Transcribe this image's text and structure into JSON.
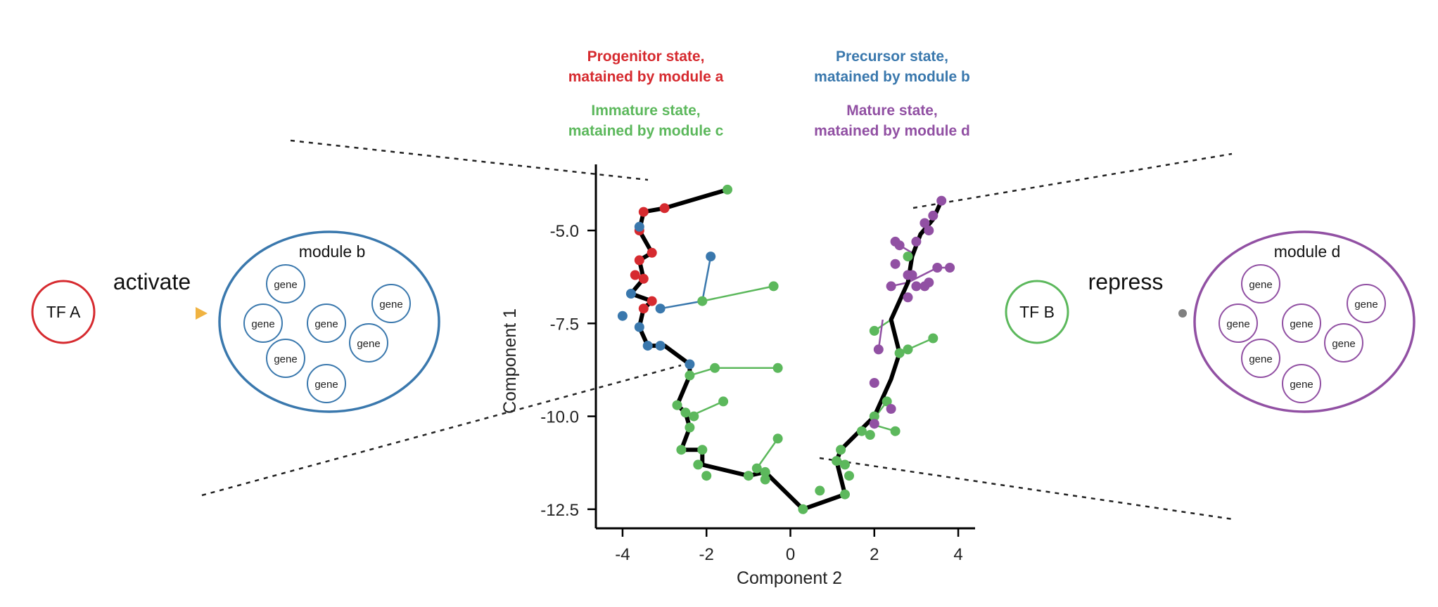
{
  "colors": {
    "progenitor": "#d62a2f",
    "precursor": "#3a78ad",
    "immature": "#5cb85c",
    "mature": "#9150a3",
    "activate_arrow": "#f0b341",
    "repress_arrow": "#808080",
    "trajectory": "#000000"
  },
  "legend": {
    "progenitor": [
      "Progenitor state,",
      "matained by module a"
    ],
    "precursor": [
      "Precursor state,",
      "matained by module b"
    ],
    "immature": [
      "Immature state,",
      "matained by module c"
    ],
    "mature": [
      "Mature state,",
      "matained by module d"
    ]
  },
  "left_panel": {
    "tf_label": "TF A",
    "arrow_label": "activate",
    "module_title": "module b",
    "gene_label": "gene",
    "gene_count": 7
  },
  "right_panel": {
    "tf_label": "TF B",
    "arrow_label": "repress",
    "module_title": "module d",
    "gene_label": "gene",
    "gene_count": 7
  },
  "chart_data": {
    "type": "scatter",
    "xlabel": "Component 2",
    "ylabel": "Component 1",
    "xlim": [
      -4.2,
      4.2
    ],
    "ylim": [
      -12.9,
      -3.6
    ],
    "xticks": [
      -4,
      -2,
      0,
      2,
      4
    ],
    "yticks": [
      -5.0,
      -7.5,
      -10.0,
      -12.5
    ],
    "xtick_labels": [
      "-4",
      "-2",
      "0",
      "2",
      "4"
    ],
    "ytick_labels": [
      "-5.0",
      "-7.5",
      "-10.0",
      "-12.5"
    ],
    "trajectory": [
      [
        -1.5,
        -3.9
      ],
      [
        -3.0,
        -4.4
      ],
      [
        -3.5,
        -4.5
      ],
      [
        -3.6,
        -5.0
      ],
      [
        -3.3,
        -5.6
      ],
      [
        -3.6,
        -5.8
      ],
      [
        -3.5,
        -6.3
      ],
      [
        -3.8,
        -6.7
      ],
      [
        -3.3,
        -6.9
      ],
      [
        -3.5,
        -7.1
      ],
      [
        -3.6,
        -7.6
      ],
      [
        -3.4,
        -8.1
      ],
      [
        -3.0,
        -8.1
      ],
      [
        -2.4,
        -8.6
      ],
      [
        -2.4,
        -8.9
      ],
      [
        -2.7,
        -9.7
      ],
      [
        -2.5,
        -9.9
      ],
      [
        -2.4,
        -10.3
      ],
      [
        -2.6,
        -10.9
      ],
      [
        -2.1,
        -10.9
      ],
      [
        -2.1,
        -11.3
      ],
      [
        -1.0,
        -11.6
      ],
      [
        -0.6,
        -11.5
      ],
      [
        0.3,
        -12.5
      ],
      [
        1.3,
        -12.1
      ],
      [
        1.1,
        -11.2
      ],
      [
        1.2,
        -10.9
      ],
      [
        2.0,
        -10.0
      ],
      [
        2.4,
        -9.0
      ],
      [
        2.6,
        -8.3
      ],
      [
        2.4,
        -7.4
      ],
      [
        2.8,
        -6.4
      ],
      [
        2.9,
        -5.7
      ],
      [
        3.1,
        -5.1
      ],
      [
        3.4,
        -4.7
      ],
      [
        3.6,
        -4.2
      ]
    ],
    "series": [
      {
        "name": "Progenitor state",
        "color": "#d62a2f",
        "points": [
          [
            -3.5,
            -4.5
          ],
          [
            -3.0,
            -4.4
          ],
          [
            -3.6,
            -5.0
          ],
          [
            -3.3,
            -5.6
          ],
          [
            -3.6,
            -5.8
          ],
          [
            -3.7,
            -6.2
          ],
          [
            -3.5,
            -6.3
          ],
          [
            -3.3,
            -6.9
          ],
          [
            -3.5,
            -7.1
          ]
        ]
      },
      {
        "name": "Precursor state",
        "color": "#3a78ad",
        "points": [
          [
            -3.6,
            -4.9
          ],
          [
            -1.9,
            -5.7
          ],
          [
            -3.8,
            -6.7
          ],
          [
            -3.1,
            -7.1
          ],
          [
            -4.0,
            -7.3
          ],
          [
            -3.6,
            -7.6
          ],
          [
            -3.4,
            -8.1
          ],
          [
            -3.1,
            -8.1
          ],
          [
            -2.4,
            -8.6
          ]
        ],
        "branches": [
          [
            [
              -3.1,
              -7.1
            ],
            [
              -2.1,
              -6.9
            ],
            [
              -1.9,
              -5.7
            ]
          ]
        ]
      },
      {
        "name": "Immature state",
        "color": "#5cb85c",
        "points": [
          [
            -1.5,
            -3.9
          ],
          [
            -2.1,
            -6.9
          ],
          [
            -0.4,
            -6.5
          ],
          [
            -2.4,
            -8.9
          ],
          [
            -1.8,
            -8.7
          ],
          [
            -0.3,
            -8.7
          ],
          [
            -2.7,
            -9.7
          ],
          [
            -1.6,
            -9.6
          ],
          [
            -2.5,
            -9.9
          ],
          [
            -2.3,
            -10.0
          ],
          [
            -2.4,
            -10.3
          ],
          [
            -2.6,
            -10.9
          ],
          [
            -2.1,
            -10.9
          ],
          [
            -2.2,
            -11.3
          ],
          [
            -2.0,
            -11.6
          ],
          [
            -1.0,
            -11.6
          ],
          [
            -0.8,
            -11.4
          ],
          [
            -0.6,
            -11.5
          ],
          [
            -0.6,
            -11.7
          ],
          [
            -0.3,
            -10.6
          ],
          [
            0.3,
            -12.5
          ],
          [
            0.7,
            -12.0
          ],
          [
            1.3,
            -12.1
          ],
          [
            1.1,
            -11.2
          ],
          [
            1.3,
            -11.3
          ],
          [
            1.4,
            -11.6
          ],
          [
            1.2,
            -10.9
          ],
          [
            1.7,
            -10.4
          ],
          [
            1.9,
            -10.5
          ],
          [
            2.0,
            -10.0
          ],
          [
            2.5,
            -10.4
          ],
          [
            2.3,
            -9.6
          ],
          [
            2.0,
            -7.7
          ],
          [
            2.6,
            -8.3
          ],
          [
            2.8,
            -8.2
          ],
          [
            3.4,
            -7.9
          ],
          [
            2.8,
            -5.7
          ]
        ],
        "branches": [
          [
            [
              -2.4,
              -8.9
            ],
            [
              -1.8,
              -8.7
            ],
            [
              -0.3,
              -8.7
            ]
          ],
          [
            [
              -2.1,
              -6.9
            ],
            [
              -0.4,
              -6.5
            ]
          ],
          [
            [
              -2.4,
              -10.0
            ],
            [
              -1.6,
              -9.6
            ]
          ],
          [
            [
              -0.8,
              -11.4
            ],
            [
              -0.3,
              -10.6
            ]
          ],
          [
            [
              2.3,
              -9.6
            ],
            [
              1.9,
              -10.2
            ],
            [
              2.5,
              -10.4
            ]
          ],
          [
            [
              2.0,
              -7.7
            ],
            [
              2.4,
              -7.4
            ]
          ],
          [
            [
              2.8,
              -8.2
            ],
            [
              3.4,
              -7.9
            ]
          ]
        ]
      },
      {
        "name": "Mature state",
        "color": "#9150a3",
        "points": [
          [
            3.6,
            -4.2
          ],
          [
            3.4,
            -4.6
          ],
          [
            3.2,
            -4.8
          ],
          [
            3.3,
            -5.0
          ],
          [
            3.0,
            -5.3
          ],
          [
            2.5,
            -5.3
          ],
          [
            2.6,
            -5.4
          ],
          [
            2.5,
            -5.9
          ],
          [
            2.8,
            -6.2
          ],
          [
            2.9,
            -6.2
          ],
          [
            3.0,
            -6.5
          ],
          [
            2.8,
            -6.8
          ],
          [
            3.2,
            -6.5
          ],
          [
            3.3,
            -6.4
          ],
          [
            3.5,
            -6.0
          ],
          [
            3.8,
            -6.0
          ],
          [
            2.4,
            -6.5
          ],
          [
            2.1,
            -8.2
          ],
          [
            2.0,
            -9.1
          ],
          [
            2.4,
            -9.8
          ],
          [
            2.0,
            -10.2
          ]
        ],
        "branches": [
          [
            [
              2.8,
              -6.4
            ],
            [
              3.5,
              -6.0
            ],
            [
              3.8,
              -6.0
            ]
          ],
          [
            [
              2.8,
              -6.4
            ],
            [
              2.4,
              -6.5
            ]
          ],
          [
            [
              2.9,
              -5.6
            ],
            [
              2.6,
              -5.4
            ],
            [
              2.5,
              -5.3
            ]
          ],
          [
            [
              2.2,
              -7.4
            ],
            [
              2.1,
              -8.2
            ]
          ],
          [
            [
              2.2,
              -9.6
            ],
            [
              2.4,
              -9.8
            ]
          ]
        ]
      }
    ]
  }
}
